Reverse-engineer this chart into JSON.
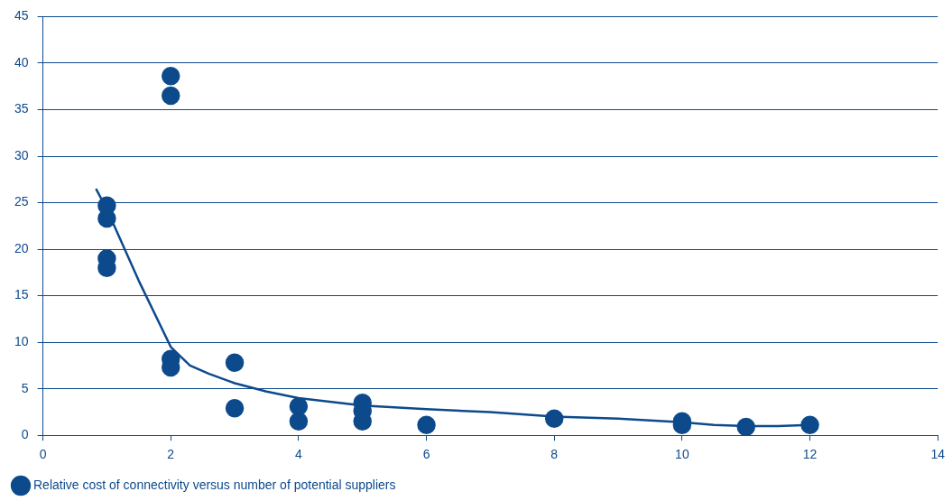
{
  "chart_data": {
    "type": "scatter",
    "xlim": [
      0,
      14
    ],
    "xticks": [
      0,
      2,
      4,
      6,
      8,
      10,
      12,
      14
    ],
    "ylim": [
      0,
      45
    ],
    "yticks": [
      0,
      5,
      10,
      15,
      20,
      25,
      30,
      35,
      40,
      45
    ],
    "grid": "y",
    "legend": "bottom left",
    "marker": "circle",
    "series": [
      {
        "name": "Relative cost of connectivity versus number of potential suppliers",
        "color": "#0d4a8c",
        "x": [
          1,
          1,
          1,
          1,
          2,
          2,
          2,
          2,
          3,
          3,
          4,
          4,
          5,
          5,
          5,
          6,
          8,
          10,
          10,
          11,
          12
        ],
        "values": [
          24.7,
          23.3,
          19.0,
          18.0,
          38.6,
          36.5,
          8.2,
          7.3,
          7.8,
          2.9,
          3.1,
          1.5,
          3.5,
          2.6,
          1.5,
          1.1,
          1.8,
          1.5,
          1.1,
          0.9,
          1.1
        ]
      },
      {
        "type": "line",
        "color": "#0d4a8c",
        "marker": "none",
        "x": [
          0.83,
          1,
          1.5,
          2,
          2.3,
          2.6,
          3,
          3.5,
          4,
          5,
          6,
          7,
          8,
          9,
          10,
          10.5,
          11,
          11.5,
          12
        ],
        "values": [
          26.5,
          24.3,
          16.6,
          9.5,
          7.5,
          6.6,
          5.6,
          4.7,
          4.0,
          3.2,
          2.8,
          2.5,
          2.0,
          1.8,
          1.4,
          1.1,
          1.0,
          1.0,
          1.1
        ]
      }
    ]
  }
}
